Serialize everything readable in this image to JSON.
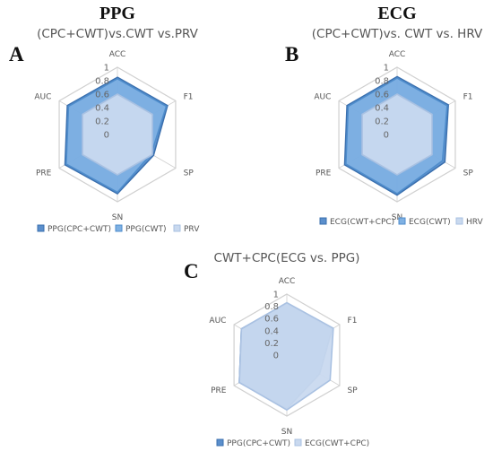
{
  "colors": {
    "dark_blue": "#5b8fcc",
    "dark_blue_edge": "#3a6fae",
    "mid_blue": "#7fb1e3",
    "mid_blue_edge": "#4f8dcc",
    "light_blue": "#c9d9ef",
    "light_blue_edge": "#a9c1e2",
    "grid": "#d0d0d0",
    "tick_text": "#666666"
  },
  "chart_data": [
    {
      "letter": "A",
      "title": "PPG",
      "subtitle": "(CPC+CWT)vs.CWT vs.PRV",
      "type": "radar",
      "axes": [
        "ACC",
        "F1",
        "SP",
        "SN",
        "PRE",
        "AUC"
      ],
      "rlim": [
        0,
        1
      ],
      "ticks": [
        "1",
        "0.8",
        "0.6",
        "0.4",
        "0.2",
        "0"
      ],
      "series": [
        {
          "name": "PPG(CPC+CWT)",
          "values": [
            0.85,
            0.86,
            0.62,
            0.88,
            0.9,
            0.86
          ],
          "style": "dark"
        },
        {
          "name": "PPG(CWT)",
          "values": [
            0.83,
            0.84,
            0.58,
            0.86,
            0.88,
            0.84
          ],
          "style": "mid"
        },
        {
          "name": "PRV",
          "values": [
            0.6,
            0.6,
            0.6,
            0.6,
            0.6,
            0.6
          ],
          "style": "light"
        }
      ]
    },
    {
      "letter": "B",
      "title": "ECG",
      "subtitle": "(CPC+CWT)vs. CWT vs. HRV",
      "type": "radar",
      "axes": [
        "ACC",
        "F1",
        "SP",
        "SN",
        "PRE",
        "AUC"
      ],
      "rlim": [
        0,
        1
      ],
      "ticks": [
        "1",
        "0.8",
        "0.6",
        "0.4",
        "0.2",
        "0"
      ],
      "series": [
        {
          "name": "ECG(CWT+CPC)",
          "values": [
            0.86,
            0.88,
            0.82,
            0.9,
            0.9,
            0.86
          ],
          "style": "dark"
        },
        {
          "name": "ECG(CWT)",
          "values": [
            0.84,
            0.86,
            0.78,
            0.88,
            0.88,
            0.84
          ],
          "style": "mid"
        },
        {
          "name": "HRV",
          "values": [
            0.6,
            0.6,
            0.6,
            0.6,
            0.6,
            0.6
          ],
          "style": "light"
        }
      ]
    },
    {
      "letter": "C",
      "title": "",
      "subtitle": "CWT+CPC(ECG vs. PPG)",
      "type": "radar",
      "axes": [
        "ACC",
        "F1",
        "SP",
        "SN",
        "PRE",
        "AUC"
      ],
      "rlim": [
        0,
        1
      ],
      "ticks": [
        "1",
        "0.8",
        "0.6",
        "0.4",
        "0.2",
        "0"
      ],
      "series": [
        {
          "name": "PPG(CPC+CWT)",
          "values": [
            0.85,
            0.86,
            0.62,
            0.88,
            0.9,
            0.86
          ],
          "style": "dark"
        },
        {
          "name": "ECG(CWT+CPC)",
          "values": [
            0.86,
            0.88,
            0.82,
            0.9,
            0.9,
            0.86
          ],
          "style": "light"
        }
      ]
    }
  ]
}
